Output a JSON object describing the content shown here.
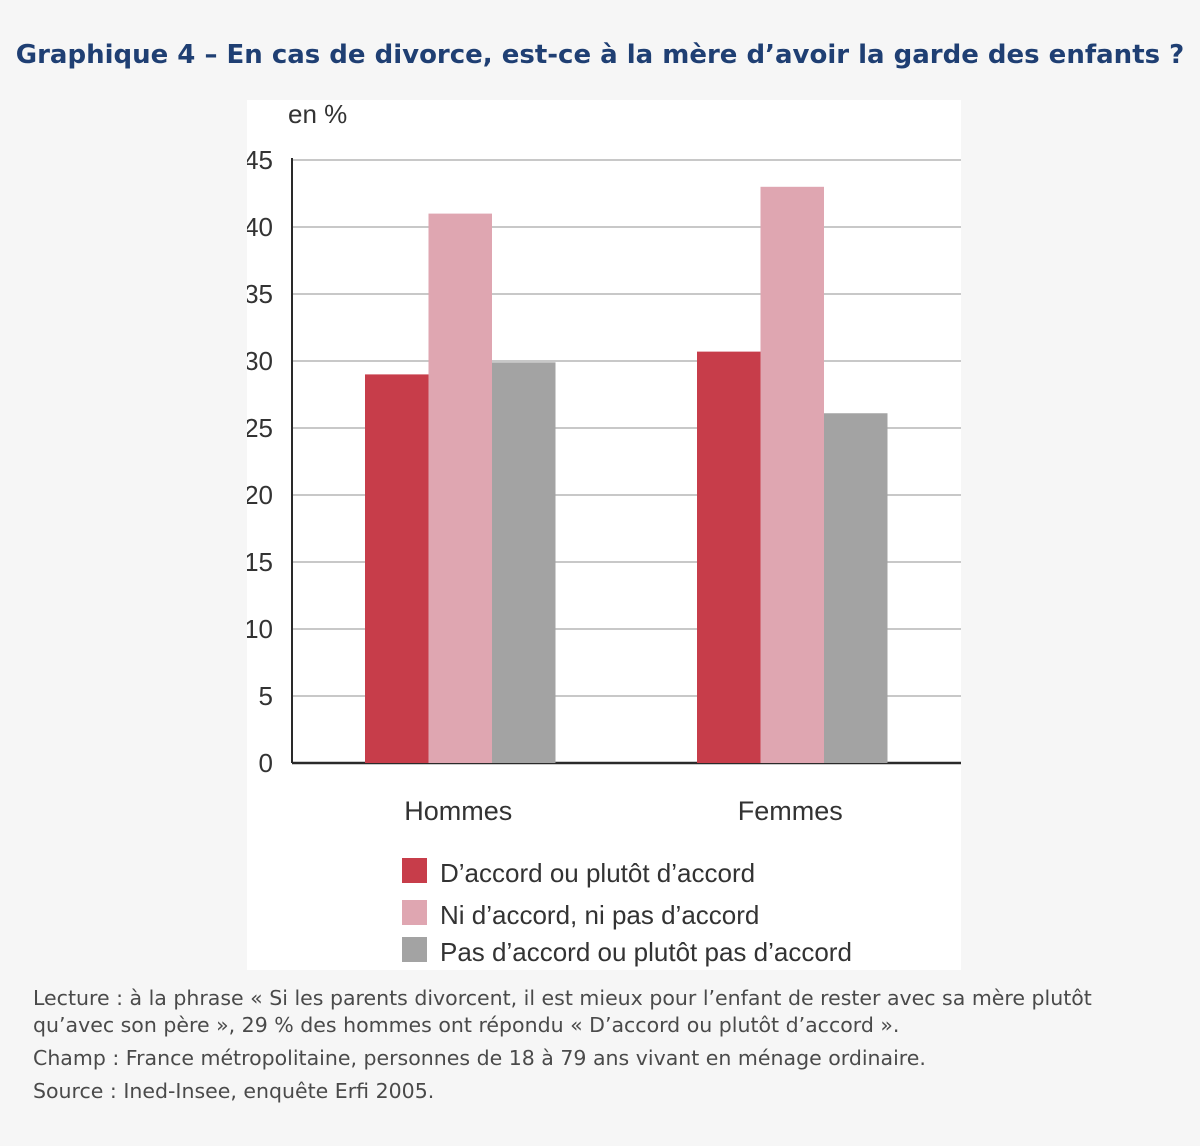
{
  "title": "Graphique 4 – En cas de divorce, est-ce à la mère d’avoir la garde des enfants ?",
  "chart_data": {
    "type": "bar",
    "unit_label": "en %",
    "categories": [
      "Hommes",
      "Femmes"
    ],
    "series": [
      {
        "name": "D’accord ou plutôt d’accord",
        "values": [
          29,
          30.7
        ],
        "color": "#c73d4a"
      },
      {
        "name": "Ni d’accord, ni pas d’accord",
        "values": [
          41,
          43
        ],
        "color": "#dfa6b1"
      },
      {
        "name": "Pas d’accord ou plutôt pas d’accord",
        "values": [
          29.9,
          26.1
        ],
        "color": "#a3a3a3"
      }
    ],
    "ylim": [
      0,
      45
    ],
    "yticks": [
      0,
      5,
      10,
      15,
      20,
      25,
      30,
      35,
      40,
      45
    ],
    "grid": true,
    "legend_position": "bottom"
  },
  "notes": {
    "lecture": "Lecture : à la phrase « Si les parents divorcent, il est mieux pour l’enfant de rester avec sa mère plutôt qu’avec son père », 29 % des hommes ont répondu « D’accord ou plutôt d’accord ».",
    "champ": "Champ : France métropolitaine, personnes de 18 à 79 ans vivant en ménage ordinaire.",
    "source": "Source : Ined-Insee, enquête Erfi 2005."
  }
}
